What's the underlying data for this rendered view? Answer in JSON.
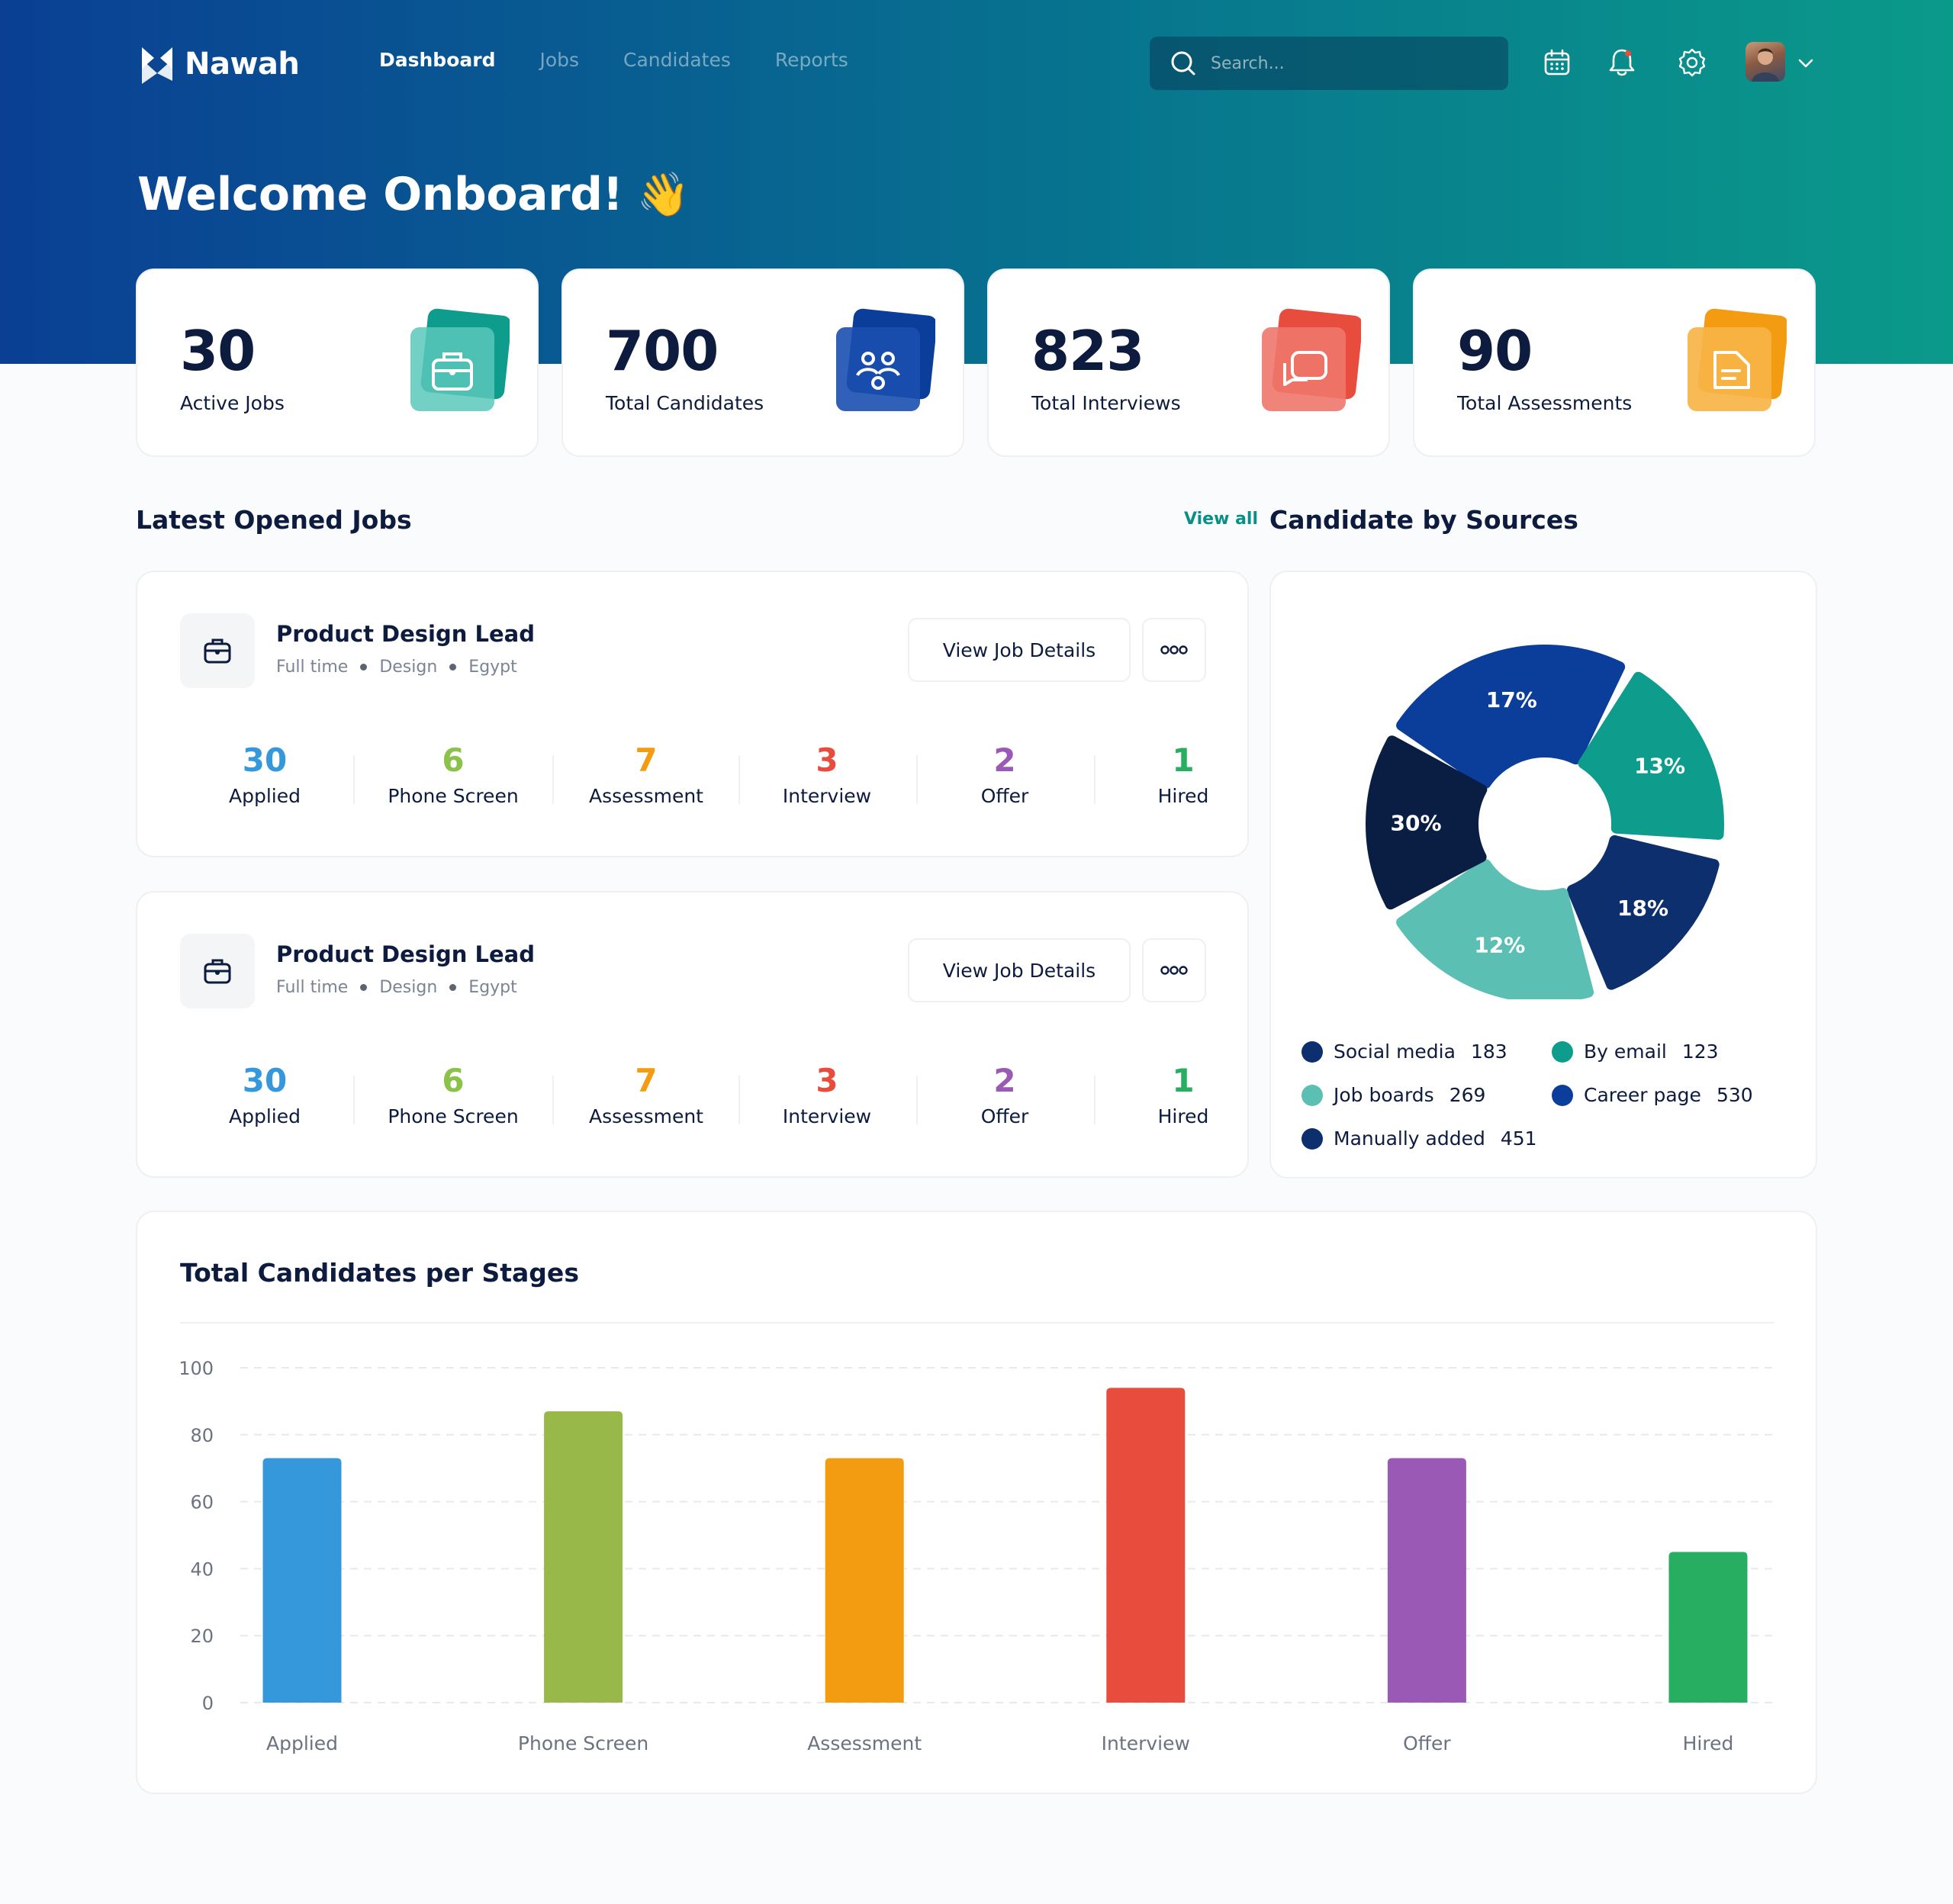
{
  "brand": {
    "name": "Nawah"
  },
  "nav": {
    "items": [
      {
        "label": "Dashboard",
        "active": true
      },
      {
        "label": "Jobs",
        "active": false
      },
      {
        "label": "Candidates",
        "active": false
      },
      {
        "label": "Reports",
        "active": false
      }
    ],
    "search_placeholder": "Search...",
    "icons": [
      "calendar-icon",
      "bell-icon",
      "gear-icon",
      "avatar",
      "chevron-down-icon"
    ]
  },
  "welcome": {
    "title": "Welcome Onboard!",
    "emoji": "👋"
  },
  "stats": [
    {
      "value": "30",
      "label": "Active Jobs",
      "icon": "briefcase-icon",
      "color": "#0e9c8c"
    },
    {
      "value": "700",
      "label": "Total Candidates",
      "icon": "people-icon",
      "color": "#0b3d9a"
    },
    {
      "value": "823",
      "label": "Total Interviews",
      "icon": "chat-icon",
      "color": "#e84c3d"
    },
    {
      "value": "90",
      "label": "Total Assessments",
      "icon": "document-icon",
      "color": "#f39c12"
    }
  ],
  "jobs_section": {
    "title": "Latest Opened Jobs",
    "view_all": "View all"
  },
  "jobs": [
    {
      "title": "Product Design Lead",
      "meta": [
        "Full time",
        "Design",
        "Egypt"
      ],
      "button": "View Job Details",
      "stages": [
        {
          "value": "30",
          "label": "Applied",
          "color": "#3498db"
        },
        {
          "value": "6",
          "label": "Phone Screen",
          "color": "#8bc34a"
        },
        {
          "value": "7",
          "label": "Assessment",
          "color": "#f39c12"
        },
        {
          "value": "3",
          "label": "Interview",
          "color": "#e74c3c"
        },
        {
          "value": "2",
          "label": "Offer",
          "color": "#9b59b6"
        },
        {
          "value": "1",
          "label": "Hired",
          "color": "#27ae60"
        }
      ]
    },
    {
      "title": "Product Design Lead",
      "meta": [
        "Full time",
        "Design",
        "Egypt"
      ],
      "button": "View Job Details",
      "stages": [
        {
          "value": "30",
          "label": "Applied",
          "color": "#3498db"
        },
        {
          "value": "6",
          "label": "Phone Screen",
          "color": "#8bc34a"
        },
        {
          "value": "7",
          "label": "Assessment",
          "color": "#f39c12"
        },
        {
          "value": "3",
          "label": "Interview",
          "color": "#e74c3c"
        },
        {
          "value": "2",
          "label": "Offer",
          "color": "#9b59b6"
        },
        {
          "value": "1",
          "label": "Hired",
          "color": "#27ae60"
        }
      ]
    }
  ],
  "sources_section": {
    "title": "Candidate by Sources"
  },
  "chart_data": [
    {
      "type": "pie",
      "donut": true,
      "slices": [
        {
          "label": "17%",
          "value": 17,
          "color": "#0b3d9a"
        },
        {
          "label": "13%",
          "value": 13,
          "color": "#0e9c8c"
        },
        {
          "label": "18%",
          "value": 18,
          "color": "#0d2f6e"
        },
        {
          "label": "12%",
          "value": 12,
          "color": "#5bbfb3"
        },
        {
          "label": "30%",
          "value": 30,
          "color": "#0a1e44"
        }
      ],
      "legend": [
        {
          "name": "Social media",
          "count": "183",
          "color": "#0d2f6e"
        },
        {
          "name": "By email",
          "count": "123",
          "color": "#0e9c8c"
        },
        {
          "name": "Job boards",
          "count": "269",
          "color": "#5bbfb3"
        },
        {
          "name": "Career page",
          "count": "530",
          "color": "#0b3d9a"
        },
        {
          "name": "Manually added",
          "count": "451",
          "color": "#0d2f6e"
        }
      ]
    },
    {
      "type": "bar",
      "title": "Total Candidates per Stages",
      "categories": [
        "Applied",
        "Phone Screen",
        "Assessment",
        "Interview",
        "Offer",
        "Hired"
      ],
      "values": [
        73,
        87,
        73,
        94,
        73,
        45
      ],
      "colors": [
        "#3498db",
        "#98b84a",
        "#f39c12",
        "#e74c3c",
        "#9b59b6",
        "#27ae60"
      ],
      "ylim": [
        0,
        100
      ],
      "yticks": [
        "100",
        "80",
        "60",
        "40",
        "20",
        "0"
      ],
      "grid": true
    }
  ]
}
